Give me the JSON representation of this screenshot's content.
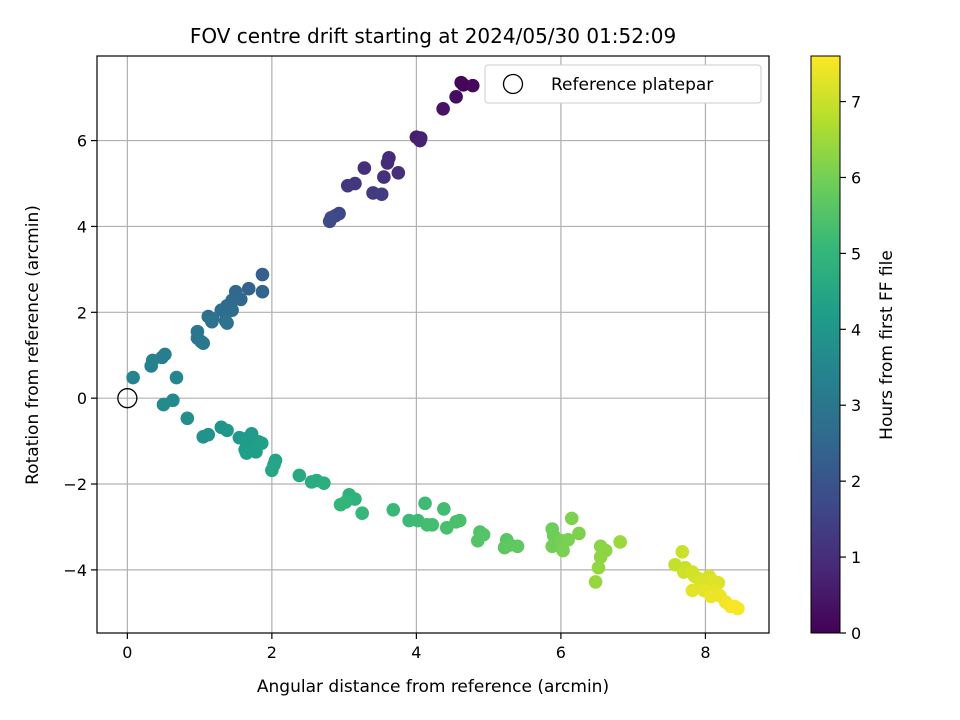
{
  "chart_data": {
    "type": "scatter",
    "title": "FOV centre drift starting at 2024/05/30 01:52:09",
    "xlabel": "Angular distance from reference (arcmin)",
    "ylabel": "Rotation from reference (arcmin)",
    "xlim": [
      -0.42,
      8.88
    ],
    "ylim": [
      -5.47,
      7.97
    ],
    "xticks": [
      0,
      2,
      4,
      6,
      8
    ],
    "yticks": [
      -4,
      -2,
      0,
      2,
      4,
      6
    ],
    "grid": true,
    "legend": {
      "location": "top-right",
      "entries": [
        "Reference platepar"
      ]
    },
    "reference_point": {
      "x": 0,
      "y": 0,
      "label": "Reference platepar"
    },
    "colorbar": {
      "label": "Hours from first FF file",
      "colormap": "viridis",
      "range": [
        0,
        7.6
      ],
      "ticks": [
        0,
        1,
        2,
        3,
        4,
        5,
        6,
        7
      ]
    },
    "series": [
      {
        "points": [
          {
            "x": 4.65,
            "y": 7.3,
            "c": 0.05
          },
          {
            "x": 4.62,
            "y": 7.35,
            "c": 0.1
          },
          {
            "x": 4.78,
            "y": 7.28,
            "c": 0.15
          },
          {
            "x": 4.55,
            "y": 7.02,
            "c": 0.25
          },
          {
            "x": 4.37,
            "y": 6.74,
            "c": 0.4
          },
          {
            "x": 4.0,
            "y": 6.08,
            "c": 0.6
          },
          {
            "x": 4.06,
            "y": 6.06,
            "c": 0.65
          },
          {
            "x": 4.05,
            "y": 6.0,
            "c": 0.7
          },
          {
            "x": 3.62,
            "y": 5.6,
            "c": 0.9
          },
          {
            "x": 3.6,
            "y": 5.48,
            "c": 0.95
          },
          {
            "x": 3.28,
            "y": 5.36,
            "c": 1.0
          },
          {
            "x": 3.75,
            "y": 5.25,
            "c": 1.05
          },
          {
            "x": 3.55,
            "y": 5.15,
            "c": 1.1
          },
          {
            "x": 3.15,
            "y": 5.0,
            "c": 1.2
          },
          {
            "x": 3.05,
            "y": 4.95,
            "c": 1.25
          },
          {
            "x": 3.4,
            "y": 4.78,
            "c": 1.3
          },
          {
            "x": 3.52,
            "y": 4.75,
            "c": 1.35
          },
          {
            "x": 2.93,
            "y": 4.3,
            "c": 1.6
          },
          {
            "x": 2.88,
            "y": 4.25,
            "c": 1.65
          },
          {
            "x": 2.82,
            "y": 4.2,
            "c": 1.7
          },
          {
            "x": 2.8,
            "y": 4.12,
            "c": 1.75
          },
          {
            "x": 1.87,
            "y": 2.88,
            "c": 2.3
          },
          {
            "x": 1.68,
            "y": 2.55,
            "c": 2.4
          },
          {
            "x": 1.87,
            "y": 2.48,
            "c": 2.45
          },
          {
            "x": 1.5,
            "y": 2.48,
            "c": 2.5
          },
          {
            "x": 1.57,
            "y": 2.3,
            "c": 2.55
          },
          {
            "x": 1.45,
            "y": 2.28,
            "c": 2.6
          },
          {
            "x": 1.38,
            "y": 2.15,
            "c": 2.65
          },
          {
            "x": 1.3,
            "y": 2.05,
            "c": 2.7
          },
          {
            "x": 1.45,
            "y": 2.05,
            "c": 2.7
          },
          {
            "x": 1.12,
            "y": 1.9,
            "c": 2.75
          },
          {
            "x": 1.18,
            "y": 1.85,
            "c": 2.8
          },
          {
            "x": 1.36,
            "y": 1.8,
            "c": 2.8
          },
          {
            "x": 1.38,
            "y": 1.75,
            "c": 2.85
          },
          {
            "x": 1.17,
            "y": 1.78,
            "c": 2.85
          },
          {
            "x": 0.97,
            "y": 1.55,
            "c": 2.95
          },
          {
            "x": 0.97,
            "y": 1.4,
            "c": 3.0
          },
          {
            "x": 1.02,
            "y": 1.32,
            "c": 3.05
          },
          {
            "x": 1.05,
            "y": 1.28,
            "c": 3.05
          },
          {
            "x": 0.52,
            "y": 1.02,
            "c": 3.2
          },
          {
            "x": 0.48,
            "y": 0.95,
            "c": 3.25
          },
          {
            "x": 0.35,
            "y": 0.88,
            "c": 3.3
          },
          {
            "x": 0.33,
            "y": 0.75,
            "c": 3.35
          },
          {
            "x": 0.08,
            "y": 0.48,
            "c": 3.45
          },
          {
            "x": 0.68,
            "y": 0.48,
            "c": 3.5
          },
          {
            "x": 0.63,
            "y": -0.05,
            "c": 3.6
          },
          {
            "x": 0.5,
            "y": -0.15,
            "c": 3.65
          },
          {
            "x": 0.83,
            "y": -0.47,
            "c": 3.75
          },
          {
            "x": 1.05,
            "y": -0.9,
            "c": 3.85
          },
          {
            "x": 1.12,
            "y": -0.85,
            "c": 3.9
          },
          {
            "x": 1.3,
            "y": -0.68,
            "c": 3.95
          },
          {
            "x": 1.38,
            "y": -0.75,
            "c": 4.0
          },
          {
            "x": 1.55,
            "y": -0.92,
            "c": 4.05
          },
          {
            "x": 1.62,
            "y": -0.95,
            "c": 4.1
          },
          {
            "x": 1.72,
            "y": -0.83,
            "c": 4.1
          },
          {
            "x": 1.65,
            "y": -1.05,
            "c": 4.15
          },
          {
            "x": 1.82,
            "y": -1.02,
            "c": 4.15
          },
          {
            "x": 1.63,
            "y": -1.2,
            "c": 4.2
          },
          {
            "x": 1.65,
            "y": -1.28,
            "c": 4.25
          },
          {
            "x": 1.78,
            "y": -1.25,
            "c": 4.25
          },
          {
            "x": 1.86,
            "y": -1.05,
            "c": 4.3
          },
          {
            "x": 2.05,
            "y": -1.45,
            "c": 4.4
          },
          {
            "x": 2.03,
            "y": -1.55,
            "c": 4.45
          },
          {
            "x": 2.0,
            "y": -1.68,
            "c": 4.5
          },
          {
            "x": 2.38,
            "y": -1.8,
            "c": 4.6
          },
          {
            "x": 2.55,
            "y": -1.95,
            "c": 4.65
          },
          {
            "x": 2.62,
            "y": -1.92,
            "c": 4.7
          },
          {
            "x": 2.72,
            "y": -1.98,
            "c": 4.75
          },
          {
            "x": 3.07,
            "y": -2.25,
            "c": 4.85
          },
          {
            "x": 3.15,
            "y": -2.35,
            "c": 4.9
          },
          {
            "x": 3.02,
            "y": -2.42,
            "c": 4.95
          },
          {
            "x": 2.95,
            "y": -2.48,
            "c": 5.0
          },
          {
            "x": 3.25,
            "y": -2.68,
            "c": 5.05
          },
          {
            "x": 3.68,
            "y": -2.6,
            "c": 5.1
          },
          {
            "x": 3.9,
            "y": -2.85,
            "c": 5.15
          },
          {
            "x": 4.02,
            "y": -2.85,
            "c": 5.2
          },
          {
            "x": 4.12,
            "y": -2.45,
            "c": 5.2
          },
          {
            "x": 4.38,
            "y": -2.58,
            "c": 5.25
          },
          {
            "x": 4.22,
            "y": -2.95,
            "c": 5.3
          },
          {
            "x": 4.15,
            "y": -2.95,
            "c": 5.3
          },
          {
            "x": 4.42,
            "y": -3.02,
            "c": 5.35
          },
          {
            "x": 4.6,
            "y": -2.85,
            "c": 5.4
          },
          {
            "x": 4.55,
            "y": -2.88,
            "c": 5.4
          },
          {
            "x": 4.88,
            "y": -3.12,
            "c": 5.5
          },
          {
            "x": 4.85,
            "y": -3.32,
            "c": 5.55
          },
          {
            "x": 4.93,
            "y": -3.18,
            "c": 5.55
          },
          {
            "x": 5.25,
            "y": -3.3,
            "c": 5.6
          },
          {
            "x": 5.22,
            "y": -3.48,
            "c": 5.65
          },
          {
            "x": 5.3,
            "y": -3.42,
            "c": 5.7
          },
          {
            "x": 5.4,
            "y": -3.45,
            "c": 5.7
          },
          {
            "x": 5.88,
            "y": -3.05,
            "c": 5.9
          },
          {
            "x": 5.9,
            "y": -3.2,
            "c": 5.9
          },
          {
            "x": 5.88,
            "y": -3.45,
            "c": 5.95
          },
          {
            "x": 6.0,
            "y": -3.32,
            "c": 6.0
          },
          {
            "x": 6.03,
            "y": -3.55,
            "c": 6.05
          },
          {
            "x": 6.1,
            "y": -3.3,
            "c": 6.05
          },
          {
            "x": 6.15,
            "y": -2.8,
            "c": 6.1
          },
          {
            "x": 6.25,
            "y": -3.15,
            "c": 6.1
          },
          {
            "x": 6.55,
            "y": -3.45,
            "c": 6.25
          },
          {
            "x": 6.55,
            "y": -3.7,
            "c": 6.3
          },
          {
            "x": 6.62,
            "y": -3.55,
            "c": 6.3
          },
          {
            "x": 6.52,
            "y": -3.95,
            "c": 6.35
          },
          {
            "x": 6.48,
            "y": -4.28,
            "c": 6.4
          },
          {
            "x": 6.82,
            "y": -3.35,
            "c": 6.45
          },
          {
            "x": 7.58,
            "y": -3.88,
            "c": 6.95
          },
          {
            "x": 7.68,
            "y": -3.58,
            "c": 7.0
          },
          {
            "x": 7.72,
            "y": -3.95,
            "c": 7.0
          },
          {
            "x": 7.7,
            "y": -4.05,
            "c": 7.05
          },
          {
            "x": 7.82,
            "y": -4.05,
            "c": 7.1
          },
          {
            "x": 7.85,
            "y": -4.15,
            "c": 7.1
          },
          {
            "x": 7.9,
            "y": -4.2,
            "c": 7.15
          },
          {
            "x": 8.05,
            "y": -4.15,
            "c": 7.15
          },
          {
            "x": 7.95,
            "y": -4.28,
            "c": 7.2
          },
          {
            "x": 8.0,
            "y": -4.35,
            "c": 7.2
          },
          {
            "x": 8.1,
            "y": -4.25,
            "c": 7.25
          },
          {
            "x": 8.18,
            "y": -4.3,
            "c": 7.25
          },
          {
            "x": 7.82,
            "y": -4.48,
            "c": 7.3
          },
          {
            "x": 7.98,
            "y": -4.48,
            "c": 7.3
          },
          {
            "x": 8.05,
            "y": -4.52,
            "c": 7.35
          },
          {
            "x": 8.12,
            "y": -4.5,
            "c": 7.35
          },
          {
            "x": 8.08,
            "y": -4.62,
            "c": 7.4
          },
          {
            "x": 8.2,
            "y": -4.6,
            "c": 7.4
          },
          {
            "x": 8.28,
            "y": -4.75,
            "c": 7.45
          },
          {
            "x": 8.35,
            "y": -4.85,
            "c": 7.5
          },
          {
            "x": 8.45,
            "y": -4.9,
            "c": 7.55
          },
          {
            "x": 8.4,
            "y": -4.85,
            "c": 7.55
          }
        ]
      }
    ]
  }
}
